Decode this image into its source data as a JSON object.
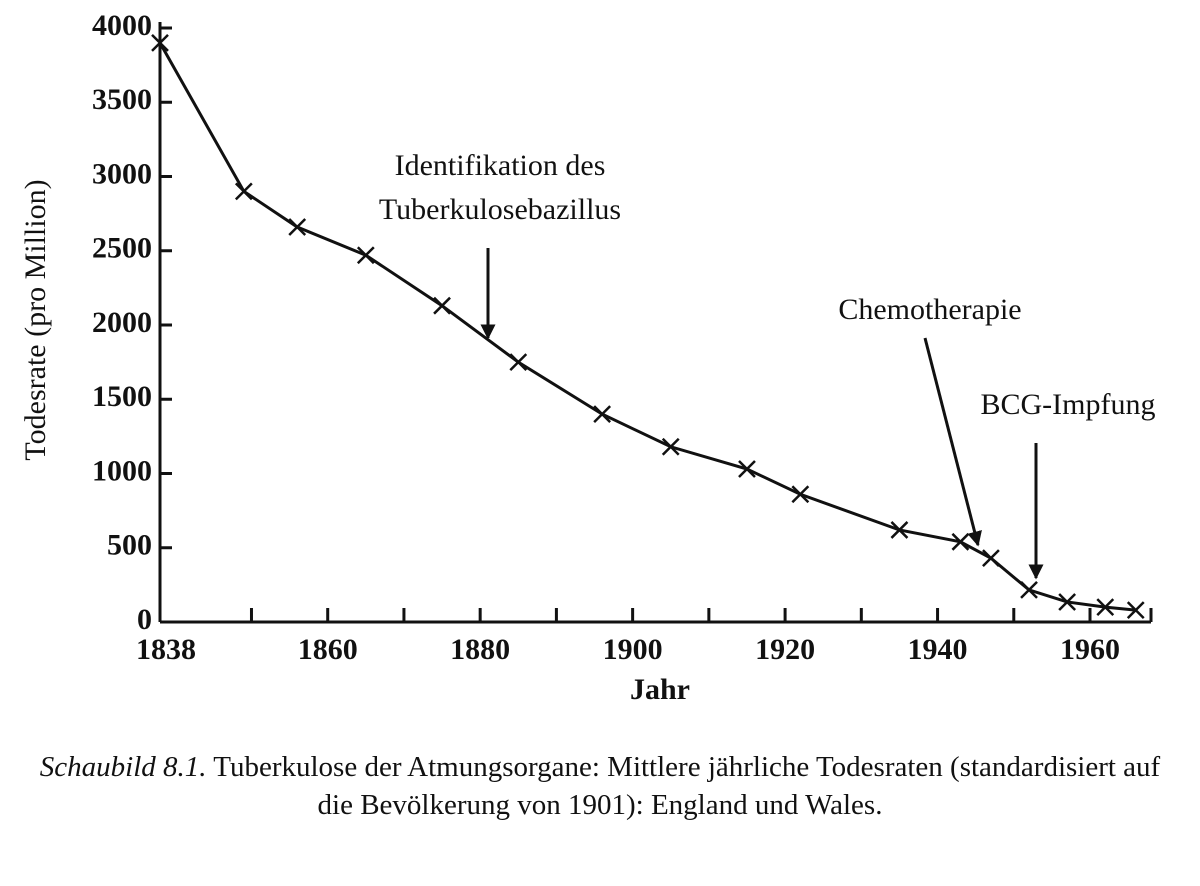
{
  "chart_data": {
    "type": "line",
    "x_label": "Jahr",
    "y_label": "Todesrate (pro Million)",
    "x": [
      1838,
      1849,
      1856,
      1865,
      1875,
      1885,
      1896,
      1905,
      1915,
      1922,
      1935,
      1943,
      1947,
      1952,
      1957,
      1962,
      1966
    ],
    "series": [
      {
        "color": "#111111",
        "values": [
          3900,
          2900,
          2660,
          2470,
          2130,
          1750,
          1400,
          1180,
          1030,
          860,
          620,
          540,
          430,
          216,
          135,
          100,
          80
        ]
      }
    ],
    "xlim": [
      1838,
      1968
    ],
    "xticks": [
      1838,
      1860,
      1880,
      1900,
      1920,
      1940,
      1960
    ],
    "xminorticks": [
      1850,
      1870,
      1890,
      1910,
      1930,
      1950
    ],
    "ylim": [
      0,
      4000
    ],
    "yticks": [
      0,
      500,
      1000,
      1500,
      2000,
      2500,
      3000,
      3500,
      4000
    ],
    "annotations": [
      {
        "lines": [
          "Identifikation des",
          "Tuberkulosebazillus"
        ],
        "x": 1882
      },
      {
        "lines": [
          "Chemotherapie"
        ],
        "x": 1947
      },
      {
        "lines": [
          "BCG-Impfung"
        ],
        "x": 1953
      }
    ]
  },
  "caption": {
    "label": "Schaubild 8.1.",
    "text": "Tuberkulose der Atmungsorgane: Mittlere jährliche Todesraten (standardisiert auf die Bevölkerung von 1901): England und Wales."
  }
}
